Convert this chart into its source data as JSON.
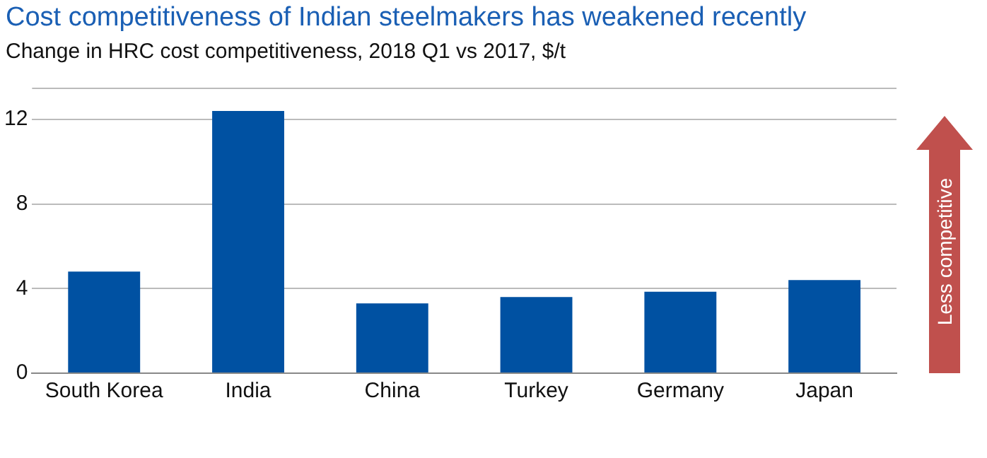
{
  "chart_data": {
    "type": "bar",
    "title": "Cost competitiveness of Indian steelmakers has weakened recently",
    "subtitle": "Change in HRC cost competitiveness, 2018 Q1 vs 2017, $/t",
    "categories": [
      "South Korea",
      "India",
      "China",
      "Turkey",
      "Germany",
      "Japan"
    ],
    "values": [
      4.8,
      12.4,
      3.3,
      3.6,
      3.85,
      4.4
    ],
    "color": "#0051a2",
    "ylim": [
      0,
      13.5
    ],
    "yticks": [
      0,
      4,
      8,
      12
    ],
    "grid": "y",
    "legend": false,
    "annotations": [
      "Less competitive"
    ]
  }
}
